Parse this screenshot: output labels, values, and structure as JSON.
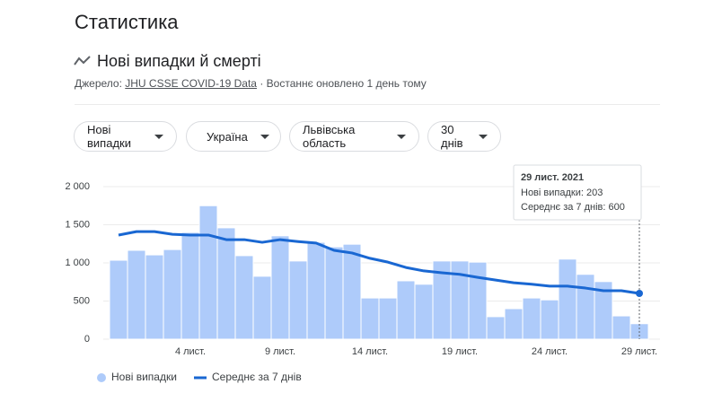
{
  "header": {
    "title": "Статистика",
    "subtitle": "Нові випадки й смерті",
    "source_prefix": "Джерело:",
    "source_link": "JHU CSSE COVID-19 Data",
    "updated": "· Востаннє оновлено 1 день тому"
  },
  "filters": [
    "Нові випадки",
    "Україна",
    "Львівська область",
    "30 днів"
  ],
  "chart_data": {
    "type": "bar_line",
    "categories": [
      null,
      null,
      null,
      null,
      "4 лист.",
      null,
      null,
      null,
      null,
      "9 лист.",
      null,
      null,
      null,
      null,
      "14 лист.",
      null,
      null,
      null,
      null,
      "19 лист.",
      null,
      null,
      null,
      null,
      "24 лист.",
      null,
      null,
      null,
      null,
      "29 лист."
    ],
    "series": [
      {
        "name": "Нові випадки",
        "color": "#aecbfa",
        "type": "bar",
        "values": [
          1035,
          1165,
          1105,
          1175,
          1400,
          1750,
          1460,
          1095,
          825,
          1355,
          1025,
          1270,
          1210,
          1245,
          540,
          540,
          765,
          720,
          1025,
          1025,
          1010,
          295,
          400,
          540,
          515,
          1050,
          850,
          755,
          305,
          203
        ]
      },
      {
        "name": "Середнє за 7 днів",
        "color": "#1967d2",
        "type": "line",
        "values": [
          1365,
          1410,
          1410,
          1375,
          1365,
          1365,
          1305,
          1305,
          1270,
          1305,
          1280,
          1260,
          1165,
          1130,
          1060,
          1010,
          940,
          895,
          870,
          850,
          810,
          775,
          740,
          720,
          695,
          695,
          670,
          635,
          635,
          600
        ]
      }
    ],
    "ylim": [
      0,
      2000
    ],
    "yticks": [
      0,
      500,
      {
        "value": 1000,
        "label": "1 000"
      },
      {
        "value": 1500,
        "label": "1 500"
      },
      {
        "value": 2000,
        "label": "2 000"
      }
    ],
    "grid": true,
    "tooltip": {
      "title": "29 лист. 2021",
      "lines": [
        "Нові випадки: 203",
        "Середнє за 7 днів: 600"
      ]
    }
  }
}
